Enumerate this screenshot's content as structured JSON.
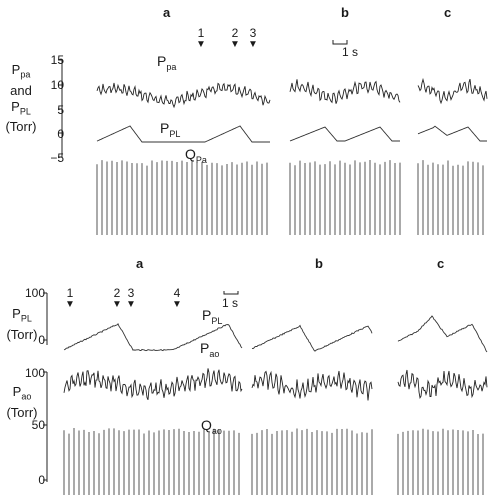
{
  "top": {
    "panels": [
      "a",
      "b",
      "c"
    ],
    "markers": [
      "1",
      "2",
      "3"
    ],
    "scale_bar": "1 s",
    "ylabel_lines": [
      "P",
      "and",
      "P",
      "(Torr)"
    ],
    "ylabel_subs": [
      "pa",
      "PL"
    ],
    "yticks": [
      "15",
      "10",
      "5",
      "0",
      "−5"
    ],
    "trace_labels": {
      "ppa": {
        "main": "P",
        "sub": "pa"
      },
      "ppl": {
        "main": "P",
        "sub": "PL"
      },
      "qpa": {
        "main": "Q",
        "sub": "Pa"
      }
    }
  },
  "bottom": {
    "panels": [
      "a",
      "b",
      "c"
    ],
    "markers": [
      "1",
      "2",
      "3",
      "4"
    ],
    "scale_bar": "1 s",
    "ppl_label": {
      "main": "P",
      "sub": "PL",
      "unit": "(Torr)"
    },
    "pao_label": {
      "main": "P",
      "sub": "ao",
      "unit": "(Torr)"
    },
    "yticks_ppl": [
      "100",
      "0"
    ],
    "yticks_pao": [
      "100",
      "50",
      "0"
    ],
    "trace_labels": {
      "ppl": {
        "main": "P",
        "sub": "PL"
      },
      "pao": {
        "main": "P",
        "sub": "ao"
      },
      "qao": {
        "main": "Q",
        "sub": "ao"
      }
    }
  }
}
